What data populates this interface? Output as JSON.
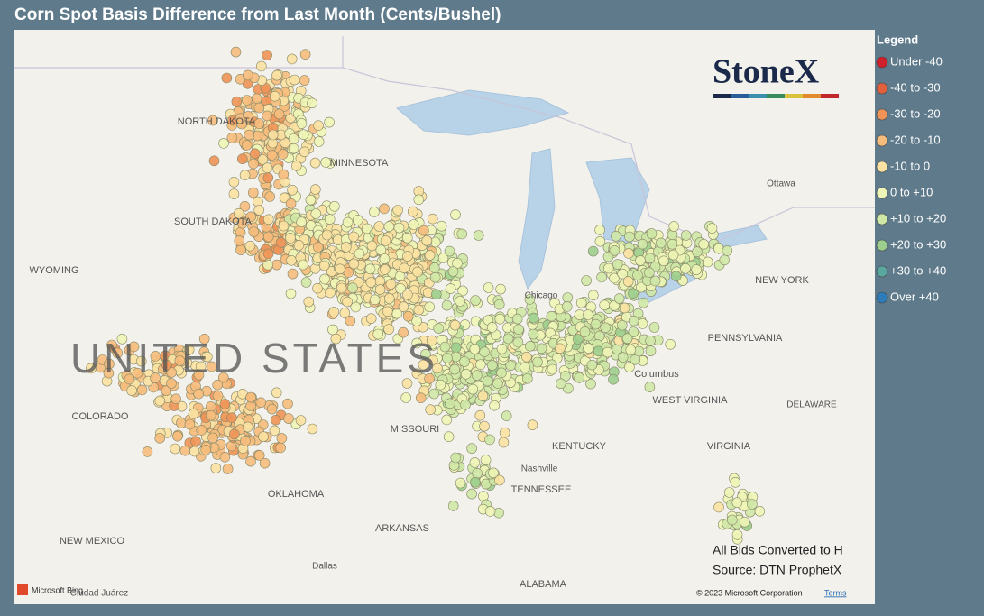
{
  "title": "Corn Spot Basis Difference from Last Month (Cents/Bushel)",
  "logo": "StoneX",
  "legend": {
    "title": "Legend",
    "items": [
      {
        "label": "Under -40",
        "color": "#d0202c"
      },
      {
        "label": "-40 to -30",
        "color": "#e2603c"
      },
      {
        "label": "-30 to -20",
        "color": "#ef9456"
      },
      {
        "label": "-20 to -10",
        "color": "#f6bc7c"
      },
      {
        "label": "-10 to 0",
        "color": "#fbe2a2"
      },
      {
        "label": "0 to +10",
        "color": "#eef5b6"
      },
      {
        "label": "+10 to +20",
        "color": "#cfe8a6"
      },
      {
        "label": "+20 to +30",
        "color": "#9ccf8e"
      },
      {
        "label": "+30 to +40",
        "color": "#5aa7a0"
      },
      {
        "label": "Over +40",
        "color": "#2d7bb8"
      }
    ]
  },
  "map_labels": [
    "NORTH DAKOTA",
    "MINNESOTA",
    "SOUTH DAKOTA",
    "WYOMING",
    "COLORADO",
    "UNITED STATES",
    "MISSOURI",
    "KENTUCKY",
    "WEST VIRGINIA",
    "VIRGINIA",
    "OKLAHOMA",
    "ARKANSAS",
    "TENNESSEE",
    "Nashville",
    "NEW MEXICO",
    "Dallas",
    "ALABAMA",
    "Columbus",
    "PENNSYLVANIA",
    "NEW YORK",
    "Ottawa",
    "DELAWARE",
    "Chicago",
    "Ciudad Juárez"
  ],
  "notes": [
    "All Bids Converted to H",
    "Source: DTN ProphetX"
  ],
  "attribution": "© 2023 Microsoft Corporation",
  "terms": "Terms",
  "bing": "Microsoft Bing"
}
